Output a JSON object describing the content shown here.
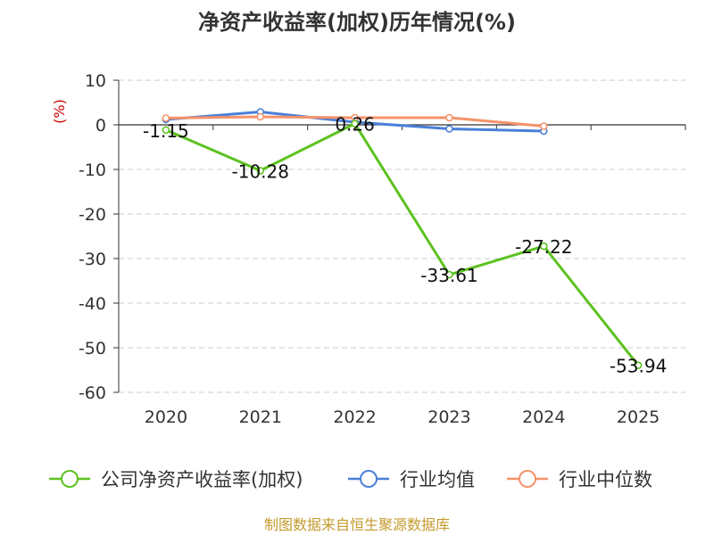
{
  "chart_data": {
    "type": "line",
    "title": "净资产收益率(加权)历年情况(%)",
    "ylabel": "(%)",
    "xlabel": "",
    "categories": [
      "2020",
      "2021",
      "2022",
      "2023",
      "2024",
      "2025"
    ],
    "ylim": [
      -60,
      10
    ],
    "yticks": [
      10,
      0,
      -10,
      -20,
      -30,
      -40,
      -50,
      -60
    ],
    "grid": true,
    "legend_position": "bottom",
    "series": [
      {
        "name": "公司净资产收益率(加权)",
        "color": "#5cc21f",
        "values": [
          -1.15,
          -10.28,
          0.26,
          -33.61,
          -27.22,
          -53.94
        ],
        "labels": [
          "-1.15",
          "-10.28",
          "0.26",
          "-33.61",
          "-27.22",
          "-53.94"
        ]
      },
      {
        "name": "行业均值",
        "color": "#4a7fd8",
        "values": [
          1.2,
          2.9,
          0.6,
          -0.9,
          -1.4,
          null
        ]
      },
      {
        "name": "行业中位数",
        "color": "#f5926a",
        "values": [
          1.5,
          1.8,
          1.6,
          1.6,
          -0.3,
          null
        ]
      }
    ]
  },
  "footer": {
    "source": "制图数据来自恒生聚源数据库"
  }
}
